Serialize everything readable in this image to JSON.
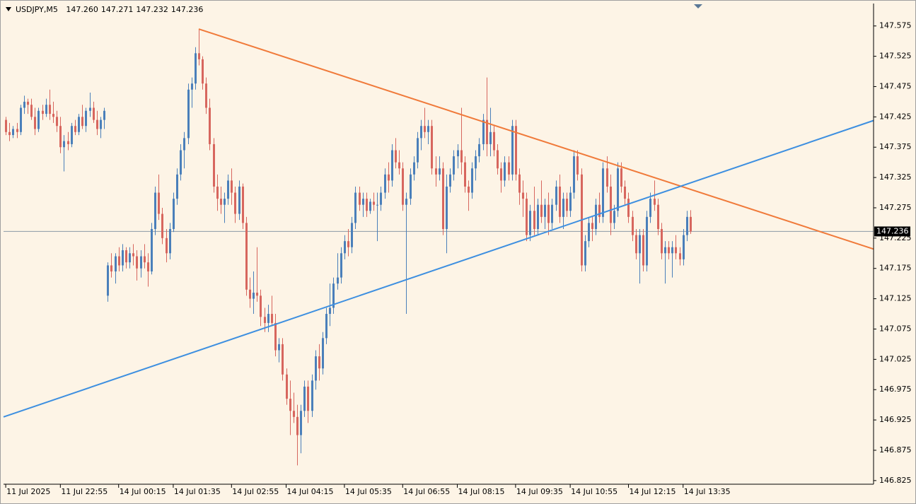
{
  "chart_data": {
    "type": "candlestick",
    "title": "USDJPY,M5",
    "header_values": [
      {
        "value": 147.26,
        "label": "147.260"
      },
      {
        "value": 147.271,
        "label": "147.271"
      },
      {
        "value": 147.232,
        "label": "147.232"
      },
      {
        "value": 147.236,
        "label": "147.236"
      }
    ],
    "up_color": "#4a7fba",
    "down_color": "#d7665e",
    "background": "#fdf4e6",
    "xlim": [
      -0.6,
      238.3
    ],
    "ylim": [
      146.819,
      147.612
    ],
    "yticks": [
      147.575,
      147.525,
      147.475,
      147.425,
      147.375,
      147.325,
      147.275,
      147.225,
      147.175,
      147.125,
      147.075,
      147.025,
      146.975,
      146.925,
      146.875,
      146.825
    ],
    "xticks": [
      {
        "value": 0,
        "label": "11 Jul 2025"
      },
      {
        "value": 15,
        "label": "11 Jul 22:55"
      },
      {
        "value": 31,
        "label": "14 Jul 00:15"
      },
      {
        "value": 46,
        "label": "14 Jul 01:35"
      },
      {
        "value": 62,
        "label": "14 Jul 02:55"
      },
      {
        "value": 77,
        "label": "14 Jul 04:15"
      },
      {
        "value": 93,
        "label": "14 Jul 05:35"
      },
      {
        "value": 109,
        "label": "14 Jul 06:55"
      },
      {
        "value": 124,
        "label": "14 Jul 08:15"
      },
      {
        "value": 140,
        "label": "14 Jul 09:35"
      },
      {
        "value": 155,
        "label": "14 Jul 10:55"
      },
      {
        "value": 171,
        "label": "14 Jul 12:15"
      },
      {
        "value": 186,
        "label": "14 Jul 13:35"
      }
    ],
    "last_price": 147.236,
    "trendlines": [
      {
        "color": "#f07a3a",
        "x": [
          53,
          238.3
        ],
        "y": [
          147.57,
          147.207
        ]
      },
      {
        "color": "#3d8fe0",
        "x": [
          -0.6,
          238.3
        ],
        "y": [
          146.93,
          147.419
        ]
      }
    ],
    "open": [
      147.42,
      147.4,
      147.395,
      147.405,
      147.4,
      147.44,
      147.45,
      147.445,
      147.425,
      147.405,
      147.435,
      147.43,
      147.445,
      147.43,
      147.425,
      147.41,
      147.375,
      147.385,
      147.38,
      147.41,
      147.4,
      147.425,
      147.41,
      147.435,
      147.44,
      147.42,
      147.405,
      147.42,
      147.13,
      147.18,
      147.17,
      147.195,
      147.18,
      147.205,
      147.185,
      147.2,
      147.195,
      147.175,
      147.195,
      147.185,
      147.17,
      147.24,
      147.3,
      147.265,
      147.225,
      147.2,
      147.24,
      147.29,
      147.33,
      147.37,
      147.39,
      147.47,
      147.48,
      147.53,
      147.52,
      147.48,
      147.44,
      147.38,
      147.31,
      147.29,
      147.28,
      147.29,
      147.32,
      147.3,
      147.265,
      147.31,
      147.25,
      147.14,
      147.125,
      147.135,
      147.13,
      147.095,
      147.085,
      147.1,
      147.085,
      147.04,
      147.05,
      147,
      146.96,
      146.94,
      146.93,
      146.9,
      146.94,
      146.98,
      146.94,
      146.99,
      147.03,
      147.01,
      147.06,
      147.1,
      147.11,
      147.15,
      147.16,
      147.2,
      147.22,
      147.21,
      147.25,
      147.3,
      147.28,
      147.29,
      147.27,
      147.285,
      147.28,
      147.28,
      147.3,
      147.33,
      147.32,
      147.37,
      147.35,
      147.34,
      147.28,
      147.29,
      147.33,
      147.35,
      147.39,
      147.41,
      147.4,
      147.41,
      147.34,
      147.33,
      147.34,
      147.24,
      147.31,
      147.33,
      147.36,
      147.37,
      147.35,
      147.31,
      147.3,
      147.34,
      147.36,
      147.38,
      147.42,
      147.38,
      147.4,
      147.37,
      147.34,
      147.32,
      147.35,
      147.33,
      147.41,
      147.33,
      147.3,
      147.29,
      147.23,
      147.27,
      147.24,
      147.28,
      147.26,
      147.28,
      147.25,
      147.28,
      147.31,
      147.26,
      147.29,
      147.27,
      147.3,
      147.36,
      147.33,
      147.18,
      147.22,
      147.25,
      147.24,
      147.28,
      147.26,
      147.34,
      147.31,
      147.25,
      147.27,
      147.34,
      147.31,
      147.29,
      147.26,
      147.23,
      147.2,
      147.23,
      147.18,
      147.26,
      147.29,
      147.28,
      147.24,
      147.2,
      147.21,
      147.2,
      147.21,
      147.2,
      147.19,
      147.23,
      147.26
    ],
    "high": [
      147.425,
      147.415,
      147.41,
      147.415,
      147.445,
      147.46,
      147.455,
      147.455,
      147.44,
      147.44,
      147.445,
      147.455,
      147.47,
      147.45,
      147.435,
      147.425,
      147.395,
      147.4,
      147.415,
      147.42,
      147.43,
      147.445,
      147.44,
      147.465,
      147.45,
      147.435,
      147.425,
      147.44,
      147.185,
      147.2,
      147.2,
      147.21,
      147.215,
      147.21,
      147.21,
      147.215,
      147.205,
      147.205,
      147.215,
      147.2,
      147.25,
      147.31,
      147.33,
      147.275,
      147.24,
      147.25,
      147.3,
      147.34,
      147.38,
      147.4,
      147.48,
      147.49,
      147.54,
      147.57,
      147.525,
      147.49,
      147.455,
      147.39,
      147.33,
      147.31,
      147.3,
      147.33,
      147.34,
      147.31,
      147.32,
      147.315,
      147.26,
      147.16,
      147.17,
      147.21,
      147.14,
      147.11,
      147.115,
      147.13,
      147.1,
      147.06,
      147.06,
      147.01,
      146.99,
      146.97,
      146.95,
      146.95,
      146.99,
      146.99,
      147,
      147.04,
      147.05,
      147.07,
      147.11,
      147.15,
      147.16,
      147.2,
      147.21,
      147.23,
      147.24,
      147.26,
      147.31,
      147.31,
      147.3,
      147.3,
      147.29,
      147.3,
      147.3,
      147.31,
      147.34,
      147.35,
      147.38,
      147.39,
      147.37,
      147.35,
      147.3,
      147.34,
      147.36,
      147.4,
      147.42,
      147.44,
      147.42,
      147.42,
      147.36,
      147.36,
      147.35,
      147.33,
      147.34,
      147.37,
      147.38,
      147.44,
      147.36,
      147.32,
      147.35,
      147.37,
      147.39,
      147.43,
      147.49,
      147.44,
      147.41,
      147.38,
      147.35,
      147.36,
      147.36,
      147.42,
      147.42,
      147.34,
      147.32,
      147.3,
      147.28,
      147.31,
      147.29,
      147.32,
      147.29,
      147.3,
      147.29,
      147.32,
      147.33,
      147.3,
      147.3,
      147.31,
      147.37,
      147.37,
      147.34,
      147.23,
      147.26,
      147.26,
      147.29,
      147.3,
      147.35,
      147.36,
      147.33,
      147.28,
      147.35,
      147.35,
      147.32,
      147.3,
      147.27,
      147.24,
      147.24,
      147.24,
      147.27,
      147.3,
      147.32,
      147.29,
      147.25,
      147.22,
      147.22,
      147.22,
      147.23,
      147.21,
      147.24,
      147.27,
      147.271
    ],
    "low": [
      147.395,
      147.385,
      147.39,
      147.39,
      147.395,
      147.43,
      147.43,
      147.42,
      147.395,
      147.4,
      147.42,
      147.425,
      147.42,
      147.415,
      147.4,
      147.365,
      147.335,
      147.37,
      147.375,
      147.395,
      147.395,
      147.405,
      147.4,
      147.425,
      147.415,
      147.395,
      147.39,
      147.405,
      147.12,
      147.16,
      147.15,
      147.17,
      147.17,
      147.175,
      147.175,
      147.18,
      147.155,
      147.16,
      147.175,
      147.145,
      147.165,
      147.23,
      147.255,
      147.215,
      147.185,
      147.19,
      147.235,
      147.28,
      147.32,
      147.34,
      147.38,
      147.44,
      147.47,
      147.51,
      147.47,
      147.43,
      147.37,
      147.3,
      147.27,
      147.265,
      147.25,
      147.28,
      147.28,
      147.25,
      147.255,
      147.24,
      147.13,
      147.11,
      147.1,
      147.12,
      147.08,
      147.07,
      147.07,
      147.08,
      147.03,
      147.02,
      146.99,
      146.95,
      146.9,
      146.92,
      146.85,
      146.87,
      146.93,
      146.92,
      146.93,
      146.975,
      146.99,
      147,
      147.05,
      147.08,
      147.1,
      147.14,
      147.15,
      147.19,
      147.195,
      147.2,
      147.24,
      147.27,
      147.26,
      147.26,
      147.265,
      147.27,
      147.22,
      147.27,
      147.29,
      147.3,
      147.31,
      147.34,
      147.33,
      147.27,
      147.1,
      147.28,
      147.32,
      147.34,
      147.37,
      147.39,
      147.38,
      147.33,
      147.31,
      147.32,
      147.23,
      147.2,
      147.3,
      147.32,
      147.34,
      147.33,
      147.3,
      147.27,
      147.29,
      147.32,
      147.35,
      147.37,
      147.36,
      147.36,
      147.36,
      147.33,
      147.3,
      147.31,
      147.32,
      147.32,
      147.32,
      147.28,
      147.26,
      147.22,
      147.22,
      147.23,
      147.23,
      147.25,
      147.24,
      147.23,
      147.24,
      147.27,
      147.25,
      147.24,
      147.26,
      147.26,
      147.29,
      147.32,
      147.17,
      147.17,
      147.21,
      147.22,
      147.23,
      147.25,
      147.25,
      147.3,
      147.23,
      147.24,
      147.26,
      147.3,
      147.28,
      147.25,
      147.22,
      147.19,
      147.15,
      147.17,
      147.17,
      147.25,
      147.27,
      147.23,
      147.19,
      147.15,
      147.19,
      147.16,
      147.19,
      147.18,
      147.18,
      147.22,
      147.232
    ],
    "close": [
      147.4,
      147.395,
      147.405,
      147.4,
      147.44,
      147.45,
      147.445,
      147.425,
      147.405,
      147.435,
      147.43,
      147.445,
      147.43,
      147.425,
      147.41,
      147.375,
      147.385,
      147.38,
      147.41,
      147.4,
      147.425,
      147.41,
      147.435,
      147.44,
      147.42,
      147.405,
      147.42,
      147.435,
      147.18,
      147.17,
      147.195,
      147.18,
      147.205,
      147.185,
      147.2,
      147.195,
      147.175,
      147.195,
      147.185,
      147.17,
      147.24,
      147.3,
      147.265,
      147.225,
      147.2,
      147.24,
      147.29,
      147.33,
      147.37,
      147.39,
      147.47,
      147.48,
      147.53,
      147.52,
      147.48,
      147.44,
      147.38,
      147.31,
      147.29,
      147.28,
      147.29,
      147.32,
      147.3,
      147.265,
      147.31,
      147.25,
      147.14,
      147.125,
      147.135,
      147.13,
      147.095,
      147.085,
      147.1,
      147.085,
      147.04,
      147.05,
      147,
      146.96,
      146.94,
      146.93,
      146.9,
      146.94,
      146.98,
      146.94,
      146.99,
      147.03,
      147.01,
      147.06,
      147.1,
      147.11,
      147.15,
      147.16,
      147.2,
      147.22,
      147.21,
      147.25,
      147.3,
      147.28,
      147.29,
      147.27,
      147.285,
      147.28,
      147.28,
      147.3,
      147.33,
      147.32,
      147.37,
      147.35,
      147.34,
      147.28,
      147.29,
      147.33,
      147.35,
      147.39,
      147.41,
      147.4,
      147.41,
      147.34,
      147.33,
      147.34,
      147.24,
      147.31,
      147.33,
      147.36,
      147.37,
      147.35,
      147.31,
      147.3,
      147.34,
      147.36,
      147.38,
      147.42,
      147.38,
      147.4,
      147.37,
      147.34,
      147.32,
      147.35,
      147.33,
      147.41,
      147.33,
      147.3,
      147.29,
      147.23,
      147.27,
      147.24,
      147.28,
      147.26,
      147.28,
      147.25,
      147.28,
      147.31,
      147.26,
      147.29,
      147.27,
      147.3,
      147.36,
      147.33,
      147.18,
      147.22,
      147.25,
      147.24,
      147.28,
      147.26,
      147.34,
      147.31,
      147.25,
      147.27,
      147.34,
      147.31,
      147.29,
      147.26,
      147.23,
      147.2,
      147.23,
      147.18,
      147.26,
      147.29,
      147.28,
      147.24,
      147.2,
      147.21,
      147.2,
      147.21,
      147.2,
      147.19,
      147.23,
      147.26,
      147.236
    ]
  }
}
